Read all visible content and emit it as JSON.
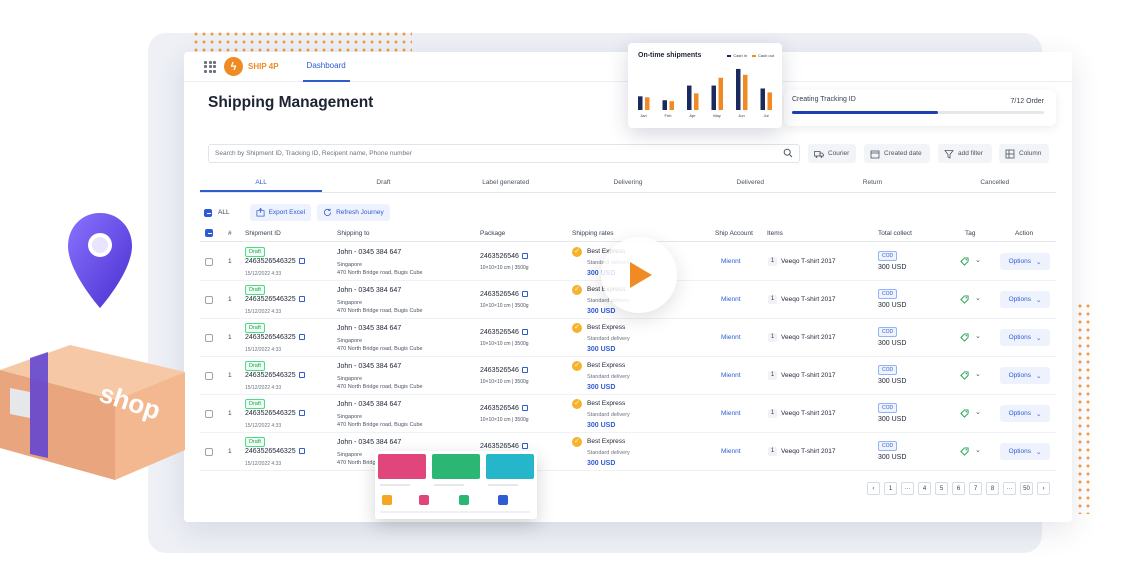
{
  "app": {
    "name": "SHIP 4P",
    "nav_tab": "Dashboard",
    "page_title": "Shipping Management"
  },
  "tracking": {
    "label": "Creating Tracking ID",
    "count": "7/12 Order",
    "progress": 0.58
  },
  "search": {
    "placeholder": "Search by Shipment ID, Tracking ID, Recipent name, Phone number"
  },
  "filters": [
    "Courier",
    "Created date",
    "add filter",
    "Column"
  ],
  "tabs": [
    "ALL",
    "Draft",
    "Label generated",
    "Delivering",
    "Delivered",
    "Return",
    "Cancelled"
  ],
  "bulk": {
    "all_label": "ALL",
    "export_label": "Export Excel",
    "refresh_label": "Refresh Journey"
  },
  "columns": [
    "#",
    "Shipment ID",
    "Shipping to",
    "Package",
    "Shipping rates",
    "Ship Account",
    "Items",
    "Total collect",
    "Tag",
    "Action"
  ],
  "rows": [
    {
      "index": "1",
      "status": "Draft",
      "shipment_id": "2463526546325",
      "date": "15/12/2022 4:33",
      "name": "John - 0345 384 647",
      "city": "Singapore",
      "address": "470 North Bridge road, Bugis Cube",
      "package_id": "2463526546",
      "package_dim": "10×10×10 cm  |  3500g",
      "rate_name": "Best Express",
      "rate_service": "Standard delivery",
      "rate_price": "300 USD",
      "account": "Miennt",
      "item_qty": "1",
      "item_name": "Veeqo T-shirt 2017",
      "collect_type": "COD",
      "collect_amount": "300 USD",
      "action": "Options"
    },
    {
      "index": "1",
      "status": "Draft",
      "shipment_id": "2463526546325",
      "date": "15/12/2022 4:33",
      "name": "John - 0345 384 647",
      "city": "Singapore",
      "address": "470 North Bridge road, Bugis Cube",
      "package_id": "2463526546",
      "package_dim": "10×10×10 cm  |  3500g",
      "rate_name": "Best Express",
      "rate_service": "Standard delivery",
      "rate_price": "300 USD",
      "account": "Miennt",
      "item_qty": "1",
      "item_name": "Veeqo T-shirt 2017",
      "collect_type": "COD",
      "collect_amount": "300 USD",
      "action": "Options"
    },
    {
      "index": "1",
      "status": "Draft",
      "shipment_id": "2463526546325",
      "date": "15/12/2022 4:33",
      "name": "John - 0345 384 647",
      "city": "Singapore",
      "address": "470 North Bridge road, Bugis Cube",
      "package_id": "2463526546",
      "package_dim": "10×10×10 cm  |  3500g",
      "rate_name": "Best Express",
      "rate_service": "Standard delivery",
      "rate_price": "300 USD",
      "account": "Miennt",
      "item_qty": "1",
      "item_name": "Veeqo T-shirt 2017",
      "collect_type": "COD",
      "collect_amount": "300 USD",
      "action": "Options"
    },
    {
      "index": "1",
      "status": "Draft",
      "shipment_id": "2463526546325",
      "date": "15/12/2022 4:33",
      "name": "John - 0345 384 647",
      "city": "Singapore",
      "address": "470 North Bridge road, Bugis Cube",
      "package_id": "2463526546",
      "package_dim": "10×10×10 cm  |  3500g",
      "rate_name": "Best Express",
      "rate_service": "Standard delivery",
      "rate_price": "300 USD",
      "account": "Miennt",
      "item_qty": "1",
      "item_name": "Veeqo T-shirt 2017",
      "collect_type": "COD",
      "collect_amount": "300 USD",
      "action": "Options"
    },
    {
      "index": "1",
      "status": "Draft",
      "shipment_id": "2463526546325",
      "date": "15/12/2022 4:33",
      "name": "John - 0345 384 647",
      "city": "Singapore",
      "address": "470 North Bridge road, Bugis Cube",
      "package_id": "2463526546",
      "package_dim": "10×10×10 cm  |  3500g",
      "rate_name": "Best Express",
      "rate_service": "Standard delivery",
      "rate_price": "300 USD",
      "account": "Miennt",
      "item_qty": "1",
      "item_name": "Veeqo T-shirt 2017",
      "collect_type": "COD",
      "collect_amount": "300 USD",
      "action": "Options"
    },
    {
      "index": "1",
      "status": "Draft",
      "shipment_id": "2463526546325",
      "date": "15/12/2022 4:33",
      "name": "John - 0345 384 647",
      "city": "Singapore",
      "address": "470 North Bridge road, Bugis Cube",
      "package_id": "2463526546",
      "package_dim": "10×10×10 cm  |  3500g",
      "rate_name": "Best Express",
      "rate_service": "Standard delivery",
      "rate_price": "300 USD",
      "account": "Miennt",
      "item_qty": "1",
      "item_name": "Veeqo T-shirt 2017",
      "collect_type": "COD",
      "collect_amount": "300 USD",
      "action": "Options"
    }
  ],
  "pagination": [
    "‹",
    "1",
    "···",
    "4",
    "5",
    "6",
    "7",
    "8",
    "···",
    "50",
    "›"
  ],
  "mini_chart": {
    "title": "On-time shipments",
    "legend": [
      "Cash in",
      "Cash out"
    ]
  },
  "chart_data": {
    "type": "bar",
    "title": "On-time shipments",
    "categories": [
      "Jan",
      "Feb",
      "Apr",
      "May",
      "Jun",
      "Jul"
    ],
    "series": [
      {
        "name": "Cash in",
        "values": [
          14,
          10,
          25,
          25,
          42,
          22
        ]
      },
      {
        "name": "Cash out",
        "values": [
          13,
          9,
          17,
          33,
          36,
          18
        ]
      }
    ],
    "colors": [
      "#1b2a5e",
      "#f08a24"
    ]
  },
  "shop_box": {
    "text": "shop"
  },
  "colors": {
    "accent": "#2f5bd3",
    "brand": "#f08a24",
    "draft_green": "#16a34a"
  }
}
